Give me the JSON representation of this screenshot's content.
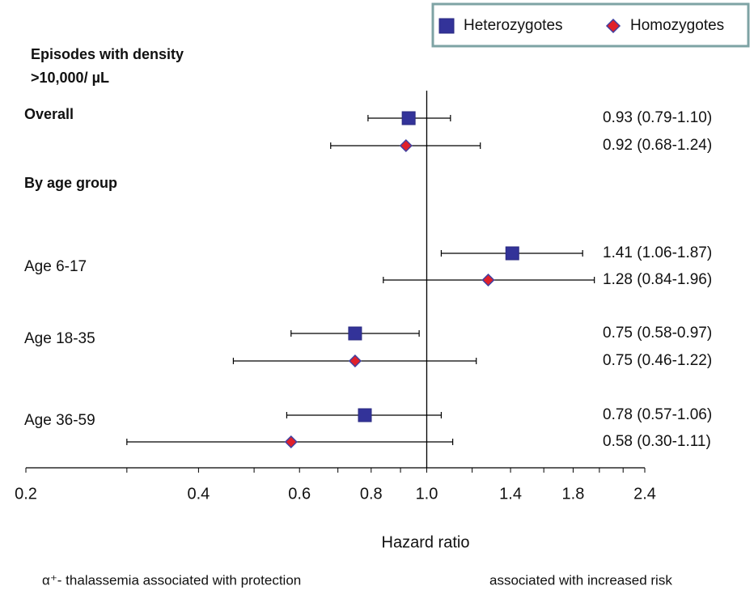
{
  "chart_data": {
    "type": "forest",
    "header_lines": [
      "Episodes with density",
      ">10,000/ µL"
    ],
    "section_label": "By age group",
    "categories": [
      "Overall",
      "Age 6-17",
      "Age 18-35",
      "Age 36-59"
    ],
    "series": [
      {
        "name": "Heterozygotes",
        "color": "#333399",
        "marker": "square",
        "values": [
          0.93,
          1.41,
          0.75,
          0.78
        ],
        "lower": [
          0.79,
          1.06,
          0.58,
          0.57
        ],
        "upper": [
          1.1,
          1.87,
          0.97,
          1.06
        ],
        "value_labels": [
          "0.93 (0.79-1.10)",
          "1.41 (1.06-1.87)",
          "0.75 (0.58-0.97)",
          "0.78 (0.57-1.06)"
        ]
      },
      {
        "name": "Homozygotes",
        "color": "#e0202a",
        "marker": "diamond",
        "values": [
          0.92,
          1.28,
          0.75,
          0.58
        ],
        "lower": [
          0.68,
          0.84,
          0.46,
          0.3
        ],
        "upper": [
          1.24,
          1.96,
          1.22,
          1.11
        ],
        "value_labels": [
          "0.92 (0.68-1.24)",
          "1.28 (0.84-1.96)",
          "0.75 (0.46-1.22)",
          "0.58 (0.30-1.11)"
        ]
      }
    ],
    "xlabel": "Hazard ratio",
    "xscale": "log",
    "xlim": [
      0.2,
      2.4
    ],
    "xticks": [
      0.2,
      0.4,
      0.6,
      0.8,
      {
        "value": 1,
        "label": "1.0"
      },
      1.4,
      1.8,
      2.4
    ],
    "xminorticks": [
      0.3,
      0.5,
      0.7,
      0.9,
      1.2,
      1.6,
      2,
      2.2
    ],
    "reference_line": 1,
    "annotations": {
      "left": "α⁺- thalassemia associated with protection",
      "right": "associated with increased risk"
    },
    "legend": "upper right"
  }
}
